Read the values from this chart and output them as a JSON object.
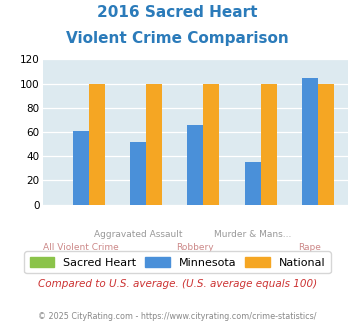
{
  "title_line1": "2016 Sacred Heart",
  "title_line2": "Violent Crime Comparison",
  "groups": [
    "All Violent Crime",
    "Aggravated Assault",
    "Robbery",
    "Murder & Mans...",
    "Rape"
  ],
  "top_labels": [
    "",
    "Aggravated Assault",
    "",
    "Murder & Mans...",
    ""
  ],
  "bot_labels": [
    "All Violent Crime",
    "",
    "Robbery",
    "",
    "Rape"
  ],
  "sacred_heart": [
    0,
    0,
    0,
    0,
    0
  ],
  "minnesota": [
    61,
    52,
    66,
    35,
    105
  ],
  "national": [
    100,
    100,
    100,
    100,
    100
  ],
  "colors": {
    "sacred_heart": "#8bc34a",
    "minnesota": "#4a90d9",
    "national": "#f5a623"
  },
  "ylim": [
    0,
    120
  ],
  "yticks": [
    0,
    20,
    40,
    60,
    80,
    100,
    120
  ],
  "title_color": "#2b7bba",
  "bg_color": "#ddeaf0",
  "top_label_color": "#999999",
  "bot_label_color": "#cc8888",
  "compared_text": "Compared to U.S. average. (U.S. average equals 100)",
  "footer_text": "© 2025 CityRating.com - https://www.cityrating.com/crime-statistics/"
}
